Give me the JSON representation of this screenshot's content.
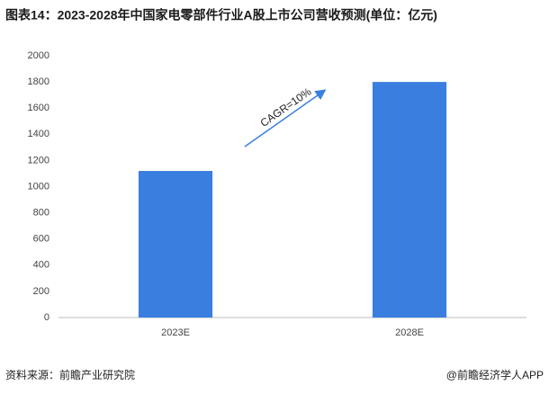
{
  "chart_data": {
    "type": "bar",
    "title": "图表14：2023-2028年中国家电零部件行业A股上市公司营收预测(单位：亿元)",
    "categories": [
      "2023E",
      "2028E"
    ],
    "values": [
      1120,
      1800
    ],
    "color": "#3a7fe0",
    "ylim": [
      0,
      2000
    ],
    "yticks": [
      0,
      200,
      400,
      600,
      800,
      1000,
      1200,
      1400,
      1600,
      1800,
      2000
    ],
    "grid": false,
    "annotation": "CAGR=10%",
    "source": "资料来源：前瞻产业研究院",
    "credit": "@前瞻经济学人APP"
  }
}
